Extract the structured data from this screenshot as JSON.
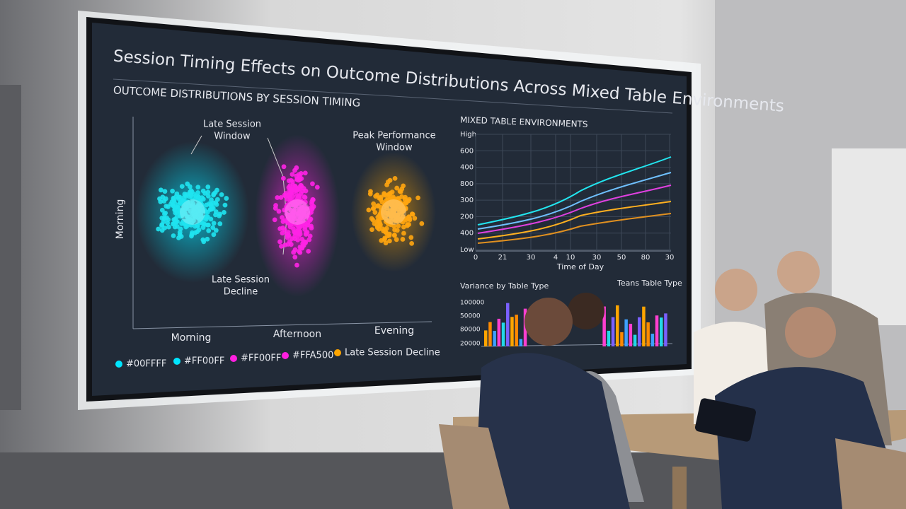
{
  "screen": {
    "title": "Session Timing Effects on Outcome Distributions Across Mixed Table Environments",
    "left_panel": {
      "title": "OUTCOME DISTRIBUTIONS BY SESSION TIMING",
      "y_label": "Morning",
      "x_labels": [
        "Morning",
        "Afternoon",
        "Evening"
      ],
      "annotations": [
        {
          "lines": [
            "Late Session",
            "Window"
          ],
          "color": "#22e0e8"
        },
        {
          "lines": [
            "Peak Performance",
            "Window"
          ],
          "color": "#e8e8e8"
        },
        {
          "lines": [
            "Late Session",
            "Decline"
          ],
          "color": "#e8e8e8"
        }
      ],
      "legend": [
        {
          "label": "#00FFFF",
          "color": "#00e5ff"
        },
        {
          "label": "#FF00FF",
          "color": "#00e5ff"
        },
        {
          "label": "#FF00FF",
          "color": "#ff1fe0"
        },
        {
          "label": "#FFA500",
          "color": "#ff1fe0"
        },
        {
          "label": "Late Session Decline",
          "color": "#ffa500"
        }
      ]
    },
    "right_panel": {
      "title": "MIXED TABLE ENVIRONMENTS",
      "y_labels": [
        "High",
        "600",
        "400",
        "800",
        "300",
        "200",
        "400",
        "Low"
      ],
      "x_labels": [
        "0",
        "21",
        "30",
        "4",
        "10",
        "30",
        "50",
        "80",
        "30"
      ],
      "x_title": "Time of Day",
      "bar_titles": [
        "Variance by Table Type",
        "Teans Table Type"
      ],
      "bar_y_labels": [
        "100000",
        "50000",
        "80000",
        "20000"
      ]
    }
  }
}
